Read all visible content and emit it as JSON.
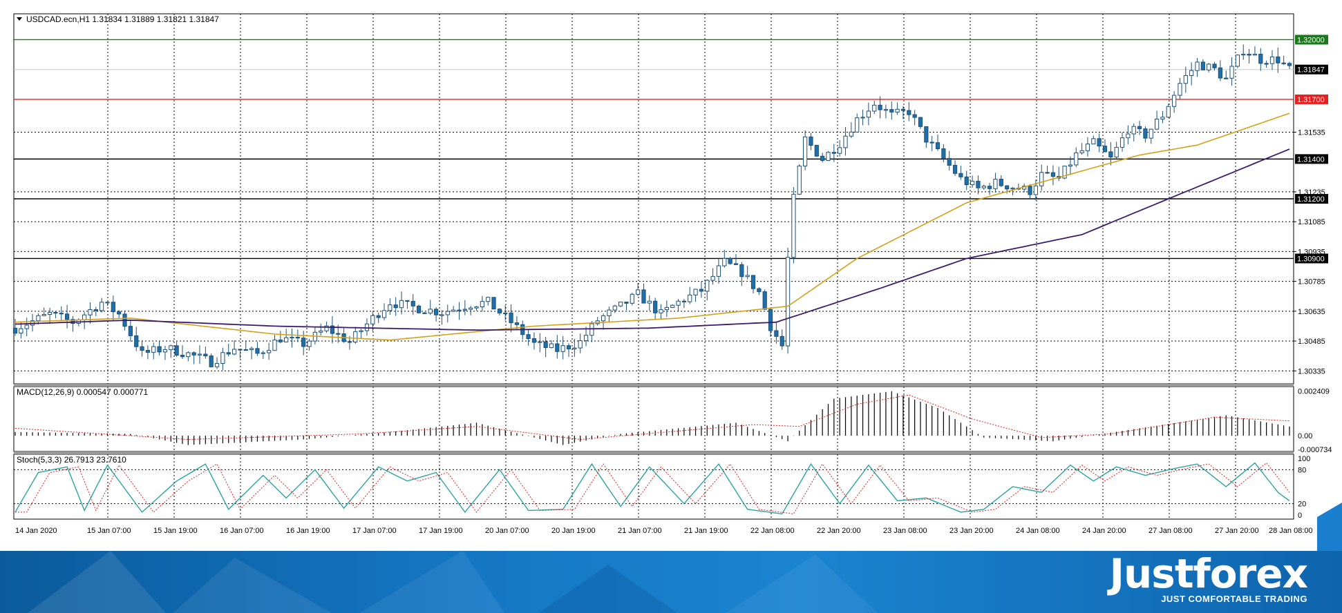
{
  "header": {
    "symbol_line": "USDCAD.ecn,H1  1.31834 1.31889 1.31821 1.31847"
  },
  "panes": {
    "macd_label": "MACD(12,26,9) 0.000547 0.000771",
    "stoch_label": "Stoch(5,3,3) 26.7913 23.7610"
  },
  "price_axis": {
    "ticks": [
      "1.31535",
      "1.31235",
      "1.31085",
      "1.30935",
      "1.30785",
      "1.30635",
      "1.30485",
      "1.30335"
    ],
    "current_price": "1.31847"
  },
  "levels": [
    {
      "label": "1.32000",
      "value": 1.32,
      "color": "#1a7a1a"
    },
    {
      "label": "1.31700",
      "value": 1.317,
      "color": "#e52020"
    },
    {
      "label": "1.31400",
      "value": 1.314,
      "color": "#000000"
    },
    {
      "label": "1.31200",
      "value": 1.312,
      "color": "#000000"
    },
    {
      "label": "1.30900",
      "value": 1.309,
      "color": "#000000"
    }
  ],
  "macd_axis": {
    "ticks": [
      "0.002409",
      "0.00",
      "-0.000734"
    ]
  },
  "stoch_axis": {
    "ticks": [
      "100",
      "80",
      "20",
      "0"
    ]
  },
  "time_axis": {
    "labels": [
      "14 Jan 2020",
      "15 Jan 07:00",
      "15 Jan 19:00",
      "16 Jan 07:00",
      "16 Jan 19:00",
      "17 Jan 07:00",
      "17 Jan 19:00",
      "20 Jan 07:00",
      "20 Jan 19:00",
      "21 Jan 07:00",
      "21 Jan 19:00",
      "22 Jan 08:00",
      "22 Jan 20:00",
      "23 Jan 08:00",
      "23 Jan 20:00",
      "24 Jan 08:00",
      "24 Jan 20:00",
      "27 Jan 08:00",
      "27 Jan 20:00",
      "28 Jan 08:00"
    ]
  },
  "branding": {
    "logo": "Justforex",
    "tagline": "JUST COMFORTABLE TRADING"
  },
  "colors": {
    "bull": "#ffffff",
    "bear": "#1f6fa8",
    "ma_fast": "#d4a017",
    "ma_slow": "#3a1a6e",
    "stoch_main": "#2aa3a3",
    "stoch_signal": "#e52020"
  },
  "chart_data": {
    "type": "candlestick",
    "symbol": "USDCAD.ecn",
    "timeframe": "H1",
    "ylim": [
      1.3027,
      1.3213
    ],
    "close_points": [
      {
        "t": 0,
        "v": 1.3055
      },
      {
        "t": 6,
        "v": 1.3062
      },
      {
        "t": 10,
        "v": 1.3058
      },
      {
        "t": 15,
        "v": 1.3068
      },
      {
        "t": 18,
        "v": 1.3062
      },
      {
        "t": 22,
        "v": 1.3042
      },
      {
        "t": 26,
        "v": 1.3045
      },
      {
        "t": 30,
        "v": 1.3042
      },
      {
        "t": 34,
        "v": 1.3038
      },
      {
        "t": 38,
        "v": 1.3045
      },
      {
        "t": 42,
        "v": 1.3042
      },
      {
        "t": 46,
        "v": 1.305
      },
      {
        "t": 50,
        "v": 1.3047
      },
      {
        "t": 54,
        "v": 1.3055
      },
      {
        "t": 58,
        "v": 1.3048
      },
      {
        "t": 62,
        "v": 1.306
      },
      {
        "t": 65,
        "v": 1.3068
      },
      {
        "t": 70,
        "v": 1.3065
      },
      {
        "t": 74,
        "v": 1.3063
      },
      {
        "t": 79,
        "v": 1.3067
      },
      {
        "t": 82,
        "v": 1.3068
      },
      {
        "t": 86,
        "v": 1.3058
      },
      {
        "t": 90,
        "v": 1.3047
      },
      {
        "t": 94,
        "v": 1.3044
      },
      {
        "t": 98,
        "v": 1.3048
      },
      {
        "t": 101,
        "v": 1.3059
      },
      {
        "t": 105,
        "v": 1.3066
      },
      {
        "t": 108,
        "v": 1.3072
      },
      {
        "t": 112,
        "v": 1.3062
      },
      {
        "t": 115,
        "v": 1.3068
      },
      {
        "t": 119,
        "v": 1.3074
      },
      {
        "t": 123,
        "v": 1.3088
      },
      {
        "t": 126,
        "v": 1.3083
      },
      {
        "t": 129,
        "v": 1.3073
      },
      {
        "t": 131,
        "v": 1.3056
      },
      {
        "t": 133,
        "v": 1.3046
      },
      {
        "t": 134,
        "v": 1.309
      },
      {
        "t": 135,
        "v": 1.312
      },
      {
        "t": 137,
        "v": 1.315
      },
      {
        "t": 140,
        "v": 1.314
      },
      {
        "t": 143,
        "v": 1.3148
      },
      {
        "t": 146,
        "v": 1.316
      },
      {
        "t": 149,
        "v": 1.3168
      },
      {
        "t": 152,
        "v": 1.3162
      },
      {
        "t": 155,
        "v": 1.3164
      },
      {
        "t": 158,
        "v": 1.315
      },
      {
        "t": 161,
        "v": 1.314
      },
      {
        "t": 164,
        "v": 1.313
      },
      {
        "t": 167,
        "v": 1.3125
      },
      {
        "t": 170,
        "v": 1.3128
      },
      {
        "t": 173,
        "v": 1.3126
      },
      {
        "t": 176,
        "v": 1.3124
      },
      {
        "t": 178,
        "v": 1.3132
      },
      {
        "t": 181,
        "v": 1.313
      },
      {
        "t": 184,
        "v": 1.3142
      },
      {
        "t": 187,
        "v": 1.3148
      },
      {
        "t": 190,
        "v": 1.314
      },
      {
        "t": 193,
        "v": 1.3155
      },
      {
        "t": 196,
        "v": 1.3152
      },
      {
        "t": 199,
        "v": 1.3162
      },
      {
        "t": 202,
        "v": 1.3178
      },
      {
        "t": 205,
        "v": 1.3188
      },
      {
        "t": 208,
        "v": 1.3185
      },
      {
        "t": 210,
        "v": 1.318
      },
      {
        "t": 213,
        "v": 1.3195
      },
      {
        "t": 216,
        "v": 1.319
      },
      {
        "t": 219,
        "v": 1.319
      },
      {
        "t": 221,
        "v": 1.3185
      }
    ],
    "ma_fast_points": [
      {
        "t": 0,
        "v": 1.3058
      },
      {
        "t": 20,
        "v": 1.306
      },
      {
        "t": 45,
        "v": 1.3052
      },
      {
        "t": 65,
        "v": 1.3049
      },
      {
        "t": 90,
        "v": 1.3056
      },
      {
        "t": 115,
        "v": 1.306
      },
      {
        "t": 134,
        "v": 1.3066
      },
      {
        "t": 146,
        "v": 1.309
      },
      {
        "t": 165,
        "v": 1.3118
      },
      {
        "t": 180,
        "v": 1.313
      },
      {
        "t": 195,
        "v": 1.3142
      },
      {
        "t": 205,
        "v": 1.3147
      },
      {
        "t": 221,
        "v": 1.3163
      }
    ],
    "ma_slow_points": [
      {
        "t": 0,
        "v": 1.3057
      },
      {
        "t": 20,
        "v": 1.3059
      },
      {
        "t": 45,
        "v": 1.3056
      },
      {
        "t": 80,
        "v": 1.3054
      },
      {
        "t": 110,
        "v": 1.3055
      },
      {
        "t": 132,
        "v": 1.3058
      },
      {
        "t": 150,
        "v": 1.3075
      },
      {
        "t": 165,
        "v": 1.309
      },
      {
        "t": 185,
        "v": 1.3102
      },
      {
        "t": 200,
        "v": 1.312
      },
      {
        "t": 221,
        "v": 1.3145
      }
    ],
    "macd_points": [
      {
        "t": 0,
        "v": 0.0002
      },
      {
        "t": 20,
        "v": 0.0001
      },
      {
        "t": 30,
        "v": -0.0005
      },
      {
        "t": 50,
        "v": -0.0002
      },
      {
        "t": 65,
        "v": 0.0002
      },
      {
        "t": 80,
        "v": 0.0007
      },
      {
        "t": 95,
        "v": -0.0005
      },
      {
        "t": 105,
        "v": 0.0001
      },
      {
        "t": 125,
        "v": 0.0007
      },
      {
        "t": 134,
        "v": -0.0003
      },
      {
        "t": 142,
        "v": 0.002
      },
      {
        "t": 152,
        "v": 0.0024
      },
      {
        "t": 160,
        "v": 0.0015
      },
      {
        "t": 168,
        "v": -0.0001
      },
      {
        "t": 180,
        "v": -0.0003
      },
      {
        "t": 195,
        "v": 0.0004
      },
      {
        "t": 210,
        "v": 0.0011
      },
      {
        "t": 221,
        "v": 0.0005
      }
    ],
    "macd_signal_points": [
      {
        "t": 0,
        "v": 0.0004
      },
      {
        "t": 30,
        "v": -0.0002
      },
      {
        "t": 60,
        "v": 0.0001
      },
      {
        "t": 80,
        "v": 0.0005
      },
      {
        "t": 98,
        "v": -0.0002
      },
      {
        "t": 128,
        "v": 0.0006
      },
      {
        "t": 136,
        "v": 0.0005
      },
      {
        "t": 146,
        "v": 0.0017
      },
      {
        "t": 155,
        "v": 0.0022
      },
      {
        "t": 166,
        "v": 0.0009
      },
      {
        "t": 178,
        "v": -0.0001
      },
      {
        "t": 190,
        "v": 0.0001
      },
      {
        "t": 208,
        "v": 0.001
      },
      {
        "t": 221,
        "v": 0.0008
      }
    ],
    "stoch_points": [
      {
        "t": 0,
        "v": 5
      },
      {
        "t": 4,
        "v": 75
      },
      {
        "t": 9,
        "v": 85
      },
      {
        "t": 12,
        "v": 8
      },
      {
        "t": 16,
        "v": 88
      },
      {
        "t": 22,
        "v": 5
      },
      {
        "t": 28,
        "v": 60
      },
      {
        "t": 33,
        "v": 90
      },
      {
        "t": 37,
        "v": 10
      },
      {
        "t": 43,
        "v": 70
      },
      {
        "t": 47,
        "v": 30
      },
      {
        "t": 52,
        "v": 80
      },
      {
        "t": 57,
        "v": 12
      },
      {
        "t": 63,
        "v": 85
      },
      {
        "t": 68,
        "v": 60
      },
      {
        "t": 73,
        "v": 75
      },
      {
        "t": 78,
        "v": 5
      },
      {
        "t": 84,
        "v": 80
      },
      {
        "t": 89,
        "v": 8
      },
      {
        "t": 95,
        "v": 10
      },
      {
        "t": 100,
        "v": 90
      },
      {
        "t": 105,
        "v": 15
      },
      {
        "t": 110,
        "v": 85
      },
      {
        "t": 116,
        "v": 20
      },
      {
        "t": 122,
        "v": 90
      },
      {
        "t": 127,
        "v": 10
      },
      {
        "t": 133,
        "v": 2
      },
      {
        "t": 138,
        "v": 90
      },
      {
        "t": 143,
        "v": 20
      },
      {
        "t": 148,
        "v": 88
      },
      {
        "t": 153,
        "v": 25
      },
      {
        "t": 158,
        "v": 30
      },
      {
        "t": 164,
        "v": 5
      },
      {
        "t": 168,
        "v": 10
      },
      {
        "t": 173,
        "v": 50
      },
      {
        "t": 178,
        "v": 40
      },
      {
        "t": 183,
        "v": 88
      },
      {
        "t": 187,
        "v": 60
      },
      {
        "t": 191,
        "v": 85
      },
      {
        "t": 196,
        "v": 70
      },
      {
        "t": 201,
        "v": 82
      },
      {
        "t": 205,
        "v": 90
      },
      {
        "t": 210,
        "v": 50
      },
      {
        "t": 215,
        "v": 92
      },
      {
        "t": 219,
        "v": 40
      },
      {
        "t": 221,
        "v": 25
      }
    ]
  }
}
